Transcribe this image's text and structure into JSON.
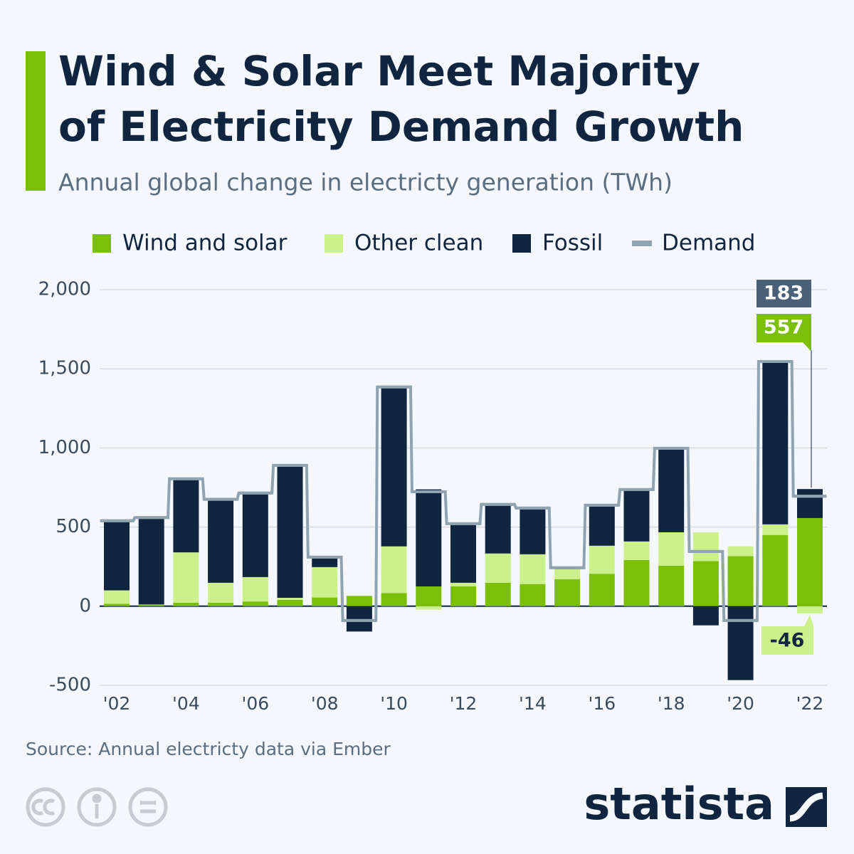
{
  "chart_data": {
    "type": "stacked-bar",
    "title": [
      "Wind & Solar Meet Majority",
      "of Electricity Demand Growth"
    ],
    "subtitle": "Annual global change in electricty generation (TWh)",
    "categories": [
      "'02",
      null,
      "'04",
      null,
      "'06",
      null,
      "'08",
      null,
      "'10",
      null,
      "'12",
      null,
      "'14",
      null,
      "'16",
      null,
      "'18",
      null,
      "'20",
      null,
      "'22"
    ],
    "series": [
      {
        "name": "Wind and solar",
        "color": "#7bbf0a",
        "values": [
          15,
          12,
          22,
          22,
          30,
          40,
          55,
          65,
          83,
          125,
          125,
          148,
          140,
          170,
          205,
          292,
          256,
          285,
          316,
          450,
          557
        ]
      },
      {
        "name": "Other clean",
        "color": "#ccf08c",
        "values": [
          85,
          0,
          318,
          126,
          154,
          13,
          192,
          0,
          295,
          -22,
          23,
          185,
          188,
          64,
          177,
          117,
          211,
          182,
          62,
          67,
          -46
        ]
      },
      {
        "name": "Fossil",
        "color": "#0f2540",
        "values": [
          435,
          540,
          457,
          522,
          526,
          837,
          59,
          -160,
          999,
          613,
          369,
          310,
          284,
          5,
          252,
          328,
          526,
          -121,
          -467,
          1029,
          183
        ]
      }
    ],
    "demand": {
      "name": "Demand",
      "color": "#8fa3b1",
      "values": [
        540,
        560,
        805,
        675,
        715,
        890,
        310,
        -90,
        1385,
        723,
        521,
        643,
        620,
        243,
        638,
        737,
        998,
        346,
        -90,
        1546,
        695
      ]
    },
    "ylim": [
      -500,
      2000
    ],
    "yticks": [
      -500,
      0,
      500,
      {
        "value": 1000,
        "label": "1,000"
      },
      {
        "value": 1500,
        "label": "1,500"
      },
      {
        "value": 2000,
        "label": "2,000"
      }
    ],
    "grid": true,
    "source": "Source: Annual electricty data via Ember",
    "logo": "statista"
  }
}
